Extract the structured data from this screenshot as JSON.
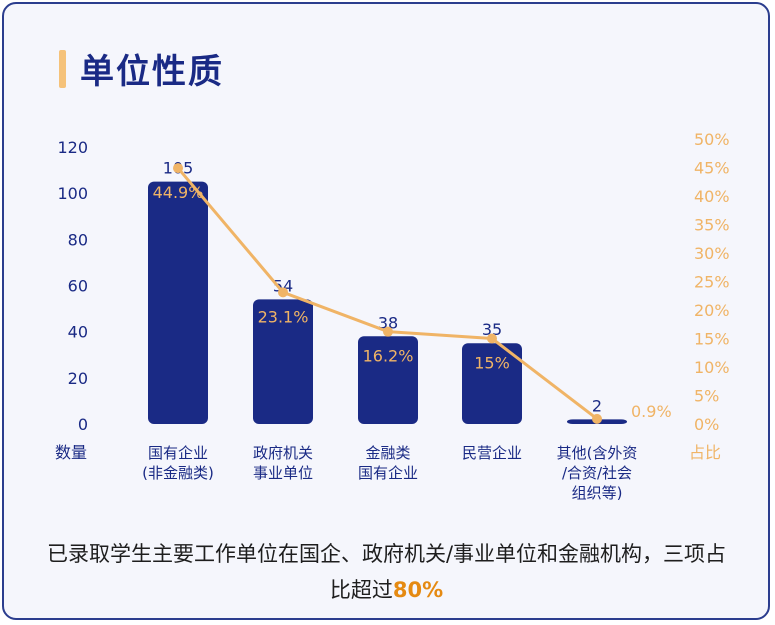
{
  "title": "单位性质",
  "chart_data": {
    "type": "bar",
    "categories": [
      [
        "国有企业",
        "(非金融类)"
      ],
      [
        "政府机关",
        "事业单位"
      ],
      [
        "金融类",
        "国有企业"
      ],
      [
        "民营企业"
      ],
      [
        "其他(含外资",
        "/合资/社会",
        "组织等)"
      ]
    ],
    "series": [
      {
        "values": [
          105,
          54,
          38,
          35,
          2
        ],
        "axis": "left",
        "mark": "bar"
      },
      {
        "values": [
          44.9,
          23.1,
          16.2,
          15,
          0.9
        ],
        "labels": [
          "44.9%",
          "23.1%",
          "16.2%",
          "15%",
          "0.9%"
        ],
        "axis": "right",
        "mark": "line"
      }
    ],
    "ylabel": "数量",
    "y2label": "占比",
    "ylim": [
      0,
      120
    ],
    "yticks": [
      "0",
      "20",
      "40",
      "60",
      "80",
      "100",
      "120"
    ],
    "y2lim": [
      0,
      50
    ],
    "y2ticks": [
      "0%",
      "5%",
      "10%",
      "15%",
      "20%",
      "25%",
      "30%",
      "35%",
      "40%",
      "45%",
      "50%"
    ],
    "grid": false,
    "colors": {
      "bar": "#1a2a85",
      "line": "#f0b466",
      "value_label": "#1a2a85",
      "pct_label": "#f0b466",
      "left_axis": "#1a2a85",
      "right_axis": "#f0b466"
    }
  },
  "caption": {
    "text": "已录取学生主要工作单位在国企、政府机关/事业单位和金融机构，三项占比超过",
    "highlight": "80%"
  }
}
